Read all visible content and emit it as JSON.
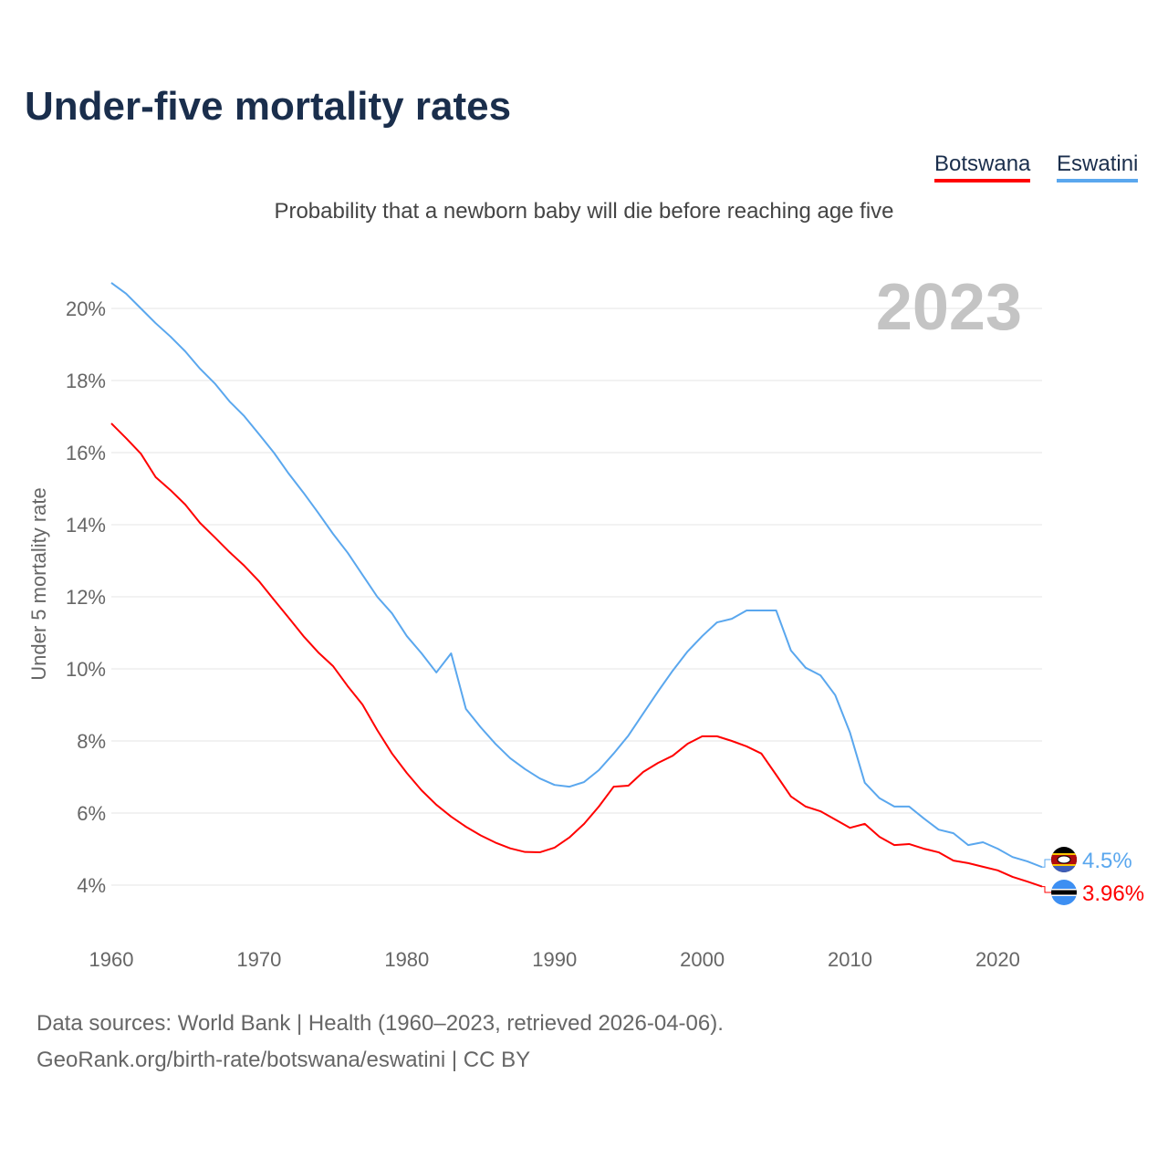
{
  "title": "Under-five mortality rates",
  "legend": [
    {
      "label": "Botswana",
      "color": "#ff0000"
    },
    {
      "label": "Eswatini",
      "color": "#5aa7ee"
    }
  ],
  "sources": [
    "Data sources: World Bank | Health (1960–2023, retrieved 2026-04-06).",
    "GeoRank.org/birth-rate/botswana/eswatini | CC BY"
  ],
  "chart_data": {
    "type": "line",
    "title": "Under-five mortality rates",
    "subtitle": "Probability that a newborn baby will die before reaching age five",
    "year_label": "2023",
    "xlabel": "",
    "ylabel": "Under 5 mortality rate",
    "xlim": [
      1960,
      2023
    ],
    "ylim": [
      3,
      21
    ],
    "x_ticks": [
      1960,
      1970,
      1980,
      1990,
      2000,
      2010,
      2020
    ],
    "y_ticks": [
      4,
      6,
      8,
      10,
      12,
      14,
      16,
      18,
      20
    ],
    "y_tick_labels": [
      "4%",
      "6%",
      "8%",
      "10%",
      "12%",
      "14%",
      "16%",
      "18%",
      "20%"
    ],
    "grid": true,
    "x": [
      1960,
      1961,
      1962,
      1963,
      1964,
      1965,
      1966,
      1967,
      1968,
      1969,
      1970,
      1971,
      1972,
      1973,
      1974,
      1975,
      1976,
      1977,
      1978,
      1979,
      1980,
      1981,
      1982,
      1983,
      1984,
      1985,
      1986,
      1987,
      1988,
      1989,
      1990,
      1991,
      1992,
      1993,
      1994,
      1995,
      1996,
      1997,
      1998,
      1999,
      2000,
      2001,
      2002,
      2003,
      2004,
      2005,
      2006,
      2007,
      2008,
      2009,
      2010,
      2011,
      2012,
      2013,
      2014,
      2015,
      2016,
      2017,
      2018,
      2019,
      2020,
      2021,
      2022,
      2023
    ],
    "series": [
      {
        "name": "Botswana",
        "color": "#ff0000",
        "end_label": "3.96%",
        "flag": "botswana-flag",
        "values": [
          16.81,
          16.4,
          15.97,
          15.32,
          14.96,
          14.56,
          14.05,
          13.65,
          13.24,
          12.86,
          12.43,
          11.92,
          11.42,
          10.91,
          10.46,
          10.08,
          9.52,
          9.01,
          8.3,
          7.65,
          7.11,
          6.63,
          6.23,
          5.9,
          5.62,
          5.38,
          5.18,
          5.02,
          4.92,
          4.91,
          5.04,
          5.32,
          5.7,
          6.18,
          6.73,
          6.76,
          7.14,
          7.39,
          7.59,
          7.92,
          8.13,
          8.13,
          8.0,
          7.85,
          7.65,
          7.06,
          6.46,
          6.18,
          6.05,
          5.82,
          5.59,
          5.7,
          5.34,
          5.11,
          5.14,
          5.01,
          4.91,
          4.68,
          4.61,
          4.51,
          4.41,
          4.23,
          4.1,
          3.96
        ]
      },
      {
        "name": "Eswatini",
        "color": "#5aa7ee",
        "end_label": "4.5%",
        "flag": "eswatini-flag",
        "values": [
          20.71,
          20.41,
          20.0,
          19.59,
          19.22,
          18.81,
          18.33,
          17.92,
          17.42,
          17.01,
          16.51,
          16.0,
          15.42,
          14.89,
          14.33,
          13.75,
          13.22,
          12.61,
          12.0,
          11.54,
          10.91,
          10.43,
          9.9,
          10.43,
          8.89,
          8.38,
          7.92,
          7.52,
          7.22,
          6.96,
          6.78,
          6.73,
          6.86,
          7.19,
          7.65,
          8.15,
          8.76,
          9.37,
          9.95,
          10.48,
          10.91,
          11.29,
          11.39,
          11.62,
          11.62,
          11.62,
          10.51,
          10.03,
          9.82,
          9.27,
          8.23,
          6.84,
          6.41,
          6.18,
          6.18,
          5.85,
          5.54,
          5.44,
          5.11,
          5.19,
          5.01,
          4.78,
          4.66,
          4.5
        ]
      }
    ]
  }
}
